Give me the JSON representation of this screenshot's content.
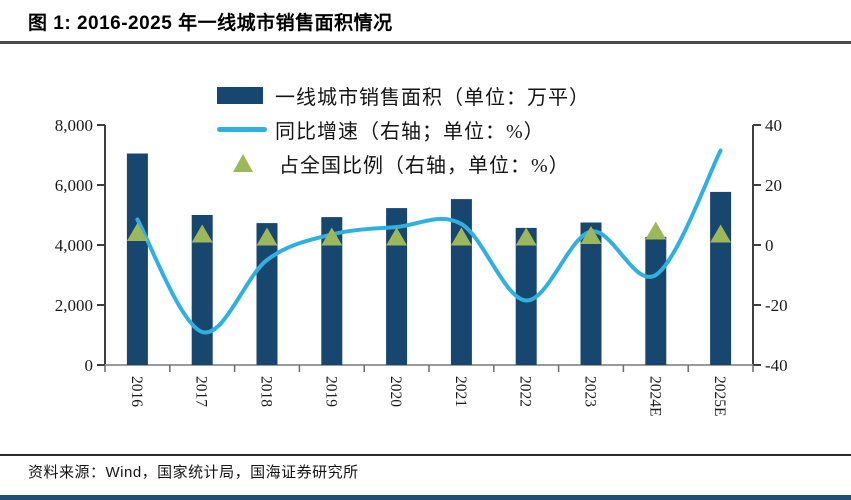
{
  "title": "图 1: 2016-2025 年一线城市销售面积情况",
  "source": "资料来源：Wind，国家统计局，国海证券研究所",
  "colors": {
    "bar": "#17476F",
    "line": "#31B0E0",
    "triangle": "#9EB75B",
    "axis": "#3f3f3f",
    "baseline": "#9a9a9a",
    "text": "#1a1a1a",
    "footer_bar": "#1F4E79"
  },
  "legend": {
    "items": [
      {
        "label": "一线城市销售面积（单位：万平）",
        "swatch": "bar"
      },
      {
        "label": "同比增速（右轴；单位：%）",
        "swatch": "line"
      },
      {
        "label": "占全国比例（右轴，单位：%）",
        "swatch": "triangle"
      }
    ]
  },
  "chart_data": {
    "type": "bar",
    "title": "2016-2025 年一线城市销售面积情况",
    "categories": [
      "2016",
      "2017",
      "2018",
      "2019",
      "2020",
      "2021",
      "2022",
      "2023",
      "2024E",
      "2025E"
    ],
    "series": [
      {
        "name": "一线城市销售面积",
        "render": "bar",
        "axis": "left",
        "unit": "万平",
        "values": [
          7050,
          5000,
          4730,
          4930,
          5230,
          5530,
          4570,
          4750,
          4270,
          5770
        ]
      },
      {
        "name": "同比增速",
        "render": "line",
        "axis": "right",
        "unit": "%",
        "values": [
          8.5,
          -29,
          -5,
          3.5,
          6,
          7,
          -18.5,
          4.5,
          -10,
          31.5
        ]
      },
      {
        "name": "占全国比例",
        "render": "triangle",
        "axis": "right",
        "unit": "%",
        "values": [
          4,
          3.5,
          2.5,
          2.5,
          2.5,
          2.5,
          2.5,
          3,
          4.5,
          3.5
        ]
      }
    ],
    "left_axis": {
      "min": 0,
      "max": 8000,
      "ticks": [
        [
          0,
          "0"
        ],
        [
          2000,
          "2,000"
        ],
        [
          4000,
          "4,000"
        ],
        [
          6000,
          "6,000"
        ],
        [
          8000,
          "8,000"
        ]
      ]
    },
    "right_axis": {
      "min": -40,
      "max": 40,
      "ticks": [
        [
          -40,
          "-40"
        ],
        [
          -20,
          "-20"
        ],
        [
          0,
          "0"
        ],
        [
          20,
          "20"
        ],
        [
          40,
          "40"
        ]
      ]
    },
    "grid": false,
    "legend_position": "top-center"
  }
}
